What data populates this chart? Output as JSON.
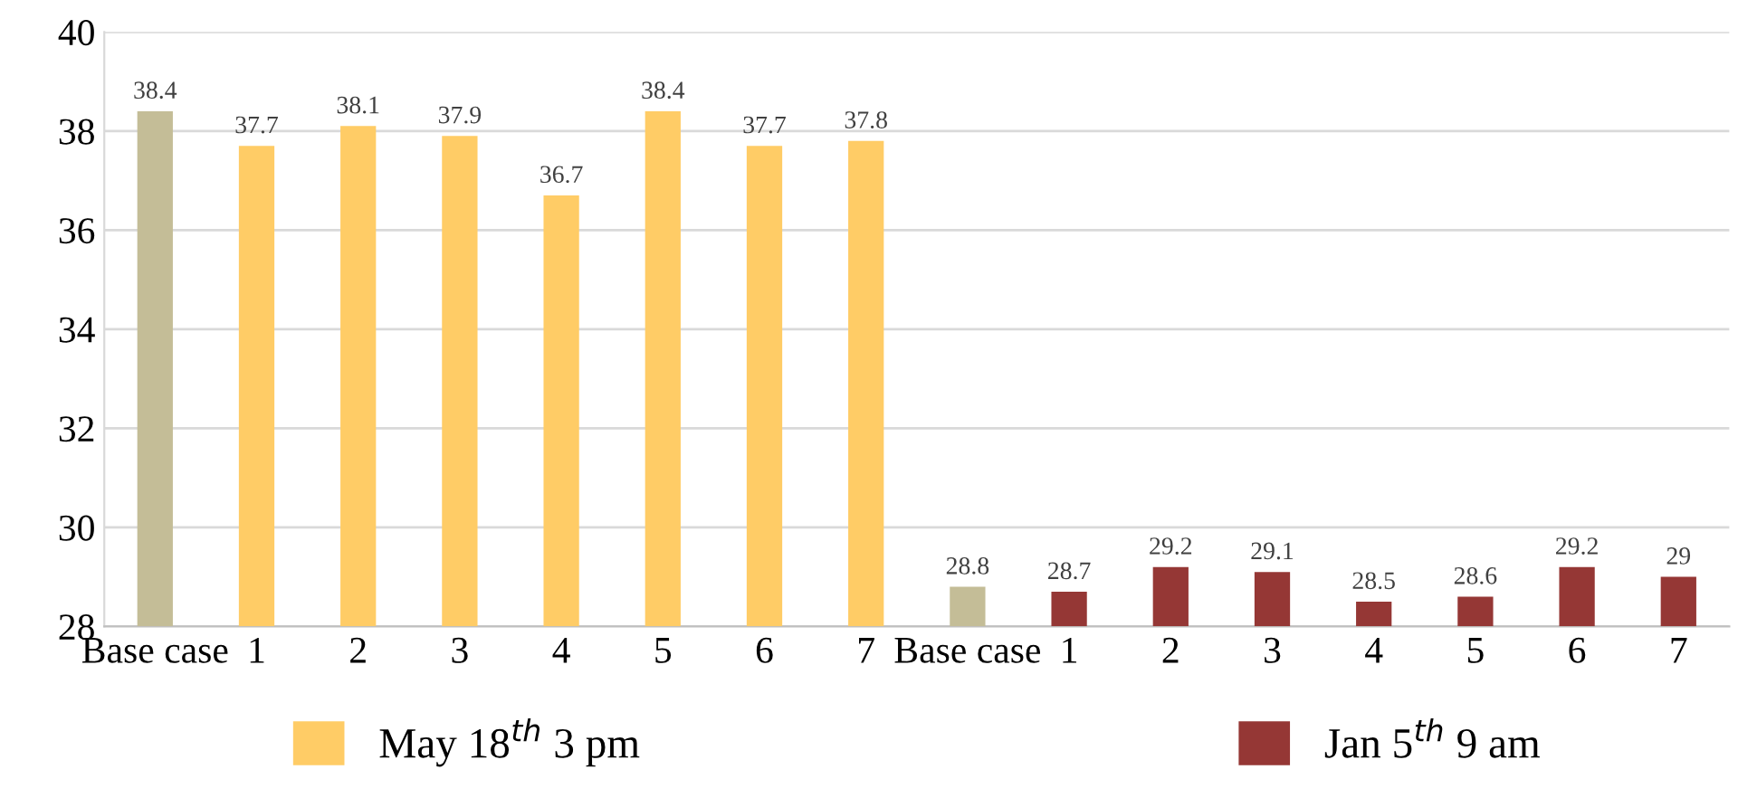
{
  "chart_data": {
    "type": "bar",
    "categories": [
      "Base case",
      "1",
      "2",
      "3",
      "4",
      "5",
      "6",
      "7",
      "Base case",
      "1",
      "2",
      "3",
      "4",
      "5",
      "6",
      "7"
    ],
    "series": [
      {
        "name": "May 18$^{th}$ 3 pm",
        "color": "#ffcc66",
        "colors": [
          "#c4bd97",
          "#ffcc66",
          "#ffcc66",
          "#ffcc66",
          "#ffcc66",
          "#ffcc66",
          "#ffcc66",
          "#ffcc66",
          null,
          null,
          null,
          null,
          null,
          null,
          null,
          null
        ],
        "values": [
          38.4,
          37.7,
          38.1,
          37.9,
          36.7,
          38.4,
          37.7,
          37.8,
          null,
          null,
          null,
          null,
          null,
          null,
          null,
          null
        ]
      },
      {
        "name": "Jan 5$^{th}$ 9 am",
        "color": "#953735",
        "colors": [
          null,
          null,
          null,
          null,
          null,
          null,
          null,
          null,
          "#c4bd97",
          "#953735",
          "#953735",
          "#953735",
          "#953735",
          "#953735",
          "#953735",
          "#953735"
        ],
        "values": [
          null,
          null,
          null,
          null,
          null,
          null,
          null,
          null,
          28.8,
          28.7,
          29.2,
          29.1,
          28.5,
          28.6,
          29.2,
          29
        ]
      }
    ],
    "ylim": [
      28,
      40
    ],
    "yticks": [
      28,
      30,
      32,
      34,
      36,
      38,
      40
    ],
    "grid": "y",
    "legend": "bottom",
    "data_labels": true
  }
}
